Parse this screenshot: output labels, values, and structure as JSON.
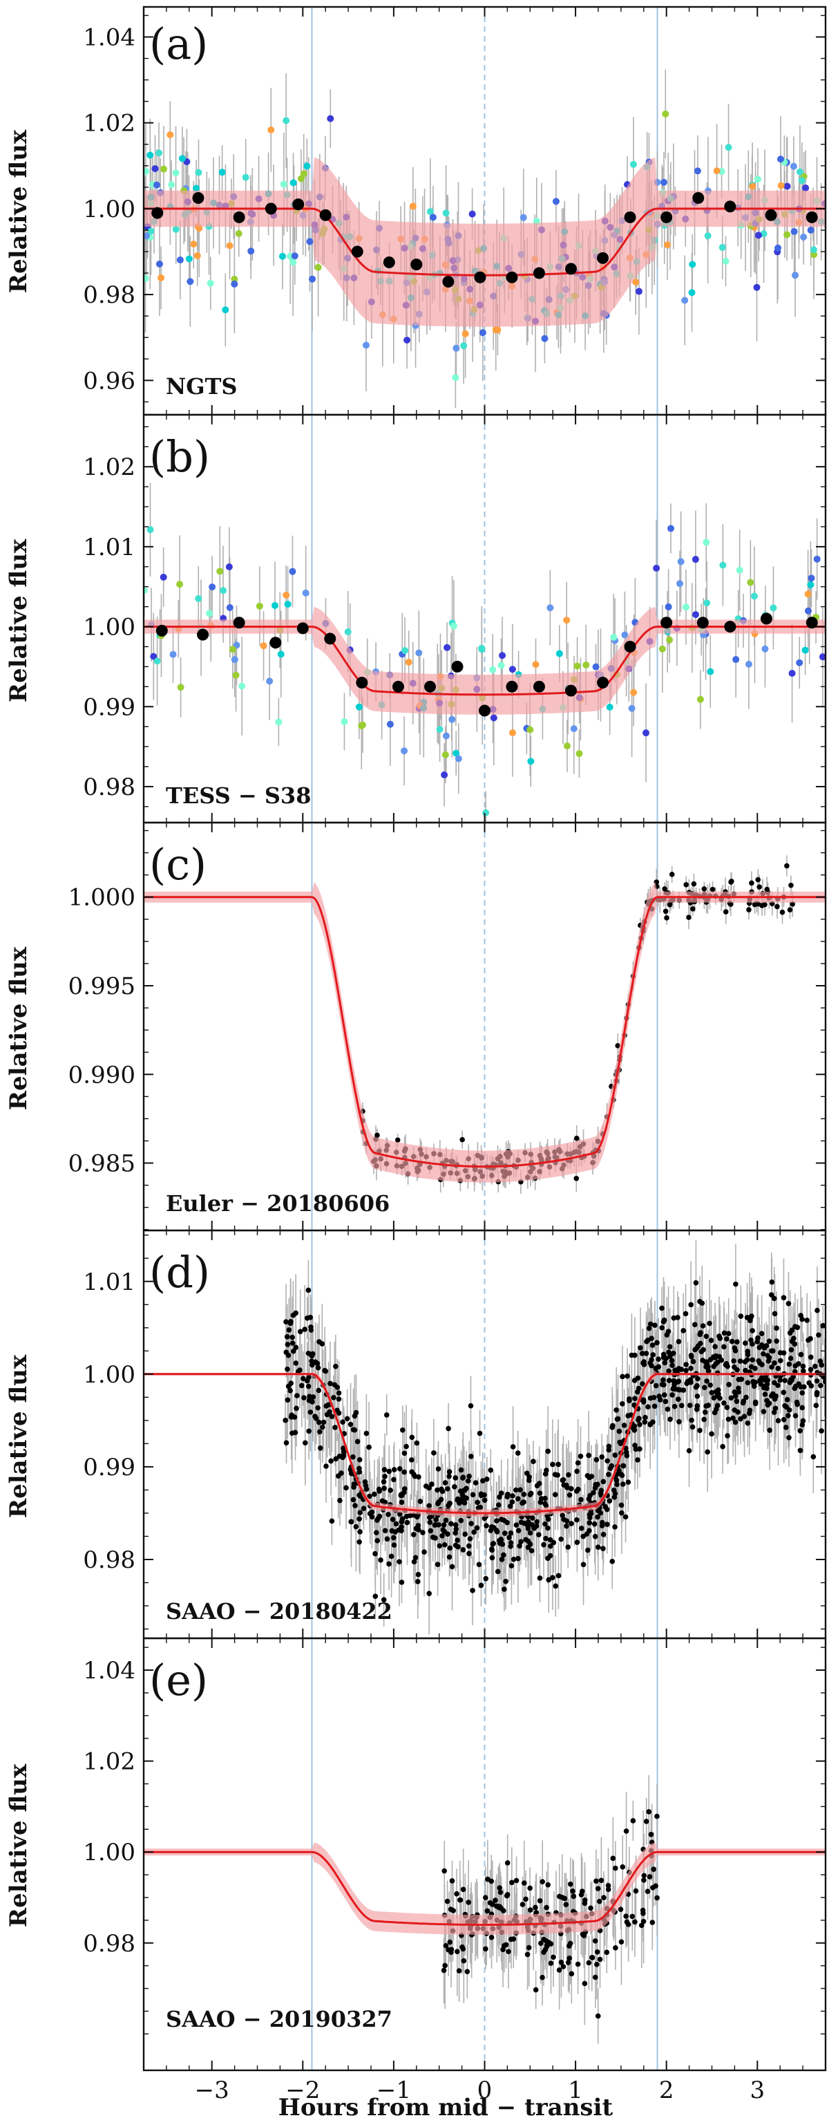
{
  "chart_data": {
    "type": "multi-panel light curve",
    "xlabel": "Hours from mid − transit",
    "xlim": [
      -3.75,
      3.75
    ],
    "x_ticks": [
      -3,
      -2,
      -1,
      0,
      1,
      2,
      3
    ],
    "x_tick_labels": [
      "−3",
      "−2",
      "−1",
      "0",
      "1",
      "2",
      "3"
    ],
    "shared_ylabel": "Relative flux",
    "ingress_egress_hours": [
      -1.9,
      1.9
    ],
    "mid_transit_hours": 0,
    "colors": {
      "model": "#e2191c",
      "model_band": "#f3a0a4",
      "binned": "#000000",
      "errorbar": "#b0b0b0",
      "vline": "#9fc3e0",
      "scatter_palette": [
        "#7fffd4",
        "#40e0d0",
        "#4169e1",
        "#3a3ad8",
        "#9acd32",
        "#ffa040",
        "#00ced1",
        "#6495ed"
      ]
    },
    "panels": [
      {
        "letter": "(a)",
        "name": "NGTS",
        "ylabel": "Relative flux",
        "ylim": [
          0.952,
          1.047
        ],
        "yticks": [
          0.96,
          0.98,
          1.0,
          1.02,
          1.04
        ],
        "ytick_labels": [
          "0.96",
          "0.98",
          "1.00",
          "1.02",
          "1.04"
        ],
        "depth": 0.0155,
        "model_half_width": 0.012,
        "points_style": "colored",
        "n_points": 320,
        "scatter": 0.008,
        "error": 0.009,
        "x_range": [
          -3.75,
          3.75
        ],
        "binned_x": [
          -3.6,
          -3.15,
          -2.7,
          -2.35,
          -2.05,
          -1.75,
          -1.4,
          -1.05,
          -0.75,
          -0.4,
          -0.05,
          0.3,
          0.6,
          0.95,
          1.3,
          1.6,
          2.0,
          2.35,
          2.7,
          3.15,
          3.6
        ],
        "binned_y": [
          0.999,
          1.0025,
          0.998,
          1.0,
          1.001,
          0.9985,
          0.99,
          0.9875,
          0.987,
          0.983,
          0.984,
          0.984,
          0.985,
          0.986,
          0.9885,
          0.998,
          0.998,
          1.0025,
          1.0005,
          0.9985,
          0.998
        ]
      },
      {
        "letter": "(b)",
        "name": "TESS − S38",
        "ylabel": "Relative flux",
        "ylim": [
          0.9755,
          1.0265
        ],
        "yticks": [
          0.98,
          0.99,
          1.0,
          1.01,
          1.02
        ],
        "ytick_labels": [
          "0.98",
          "0.99",
          "1.00",
          "1.01",
          "1.02"
        ],
        "depth": 0.0085,
        "model_half_width": 0.0025,
        "points_style": "colored",
        "n_points": 170,
        "scatter": 0.0045,
        "error": 0.0045,
        "x_range": [
          -3.75,
          3.75
        ],
        "binned_x": [
          -3.55,
          -3.1,
          -2.7,
          -2.3,
          -2.0,
          -1.7,
          -1.35,
          -0.95,
          -0.6,
          -0.3,
          0.0,
          0.3,
          0.6,
          0.95,
          1.3,
          1.6,
          2.0,
          2.4,
          2.7,
          3.1,
          3.6
        ],
        "binned_y": [
          0.9995,
          0.999,
          1.0005,
          0.998,
          0.9998,
          0.9985,
          0.993,
          0.9925,
          0.9925,
          0.995,
          0.9895,
          0.9925,
          0.9925,
          0.992,
          0.993,
          0.9975,
          1.0005,
          1.0005,
          1.0,
          1.001,
          1.0005
        ]
      },
      {
        "letter": "(c)",
        "name": "Euler − 20180606",
        "ylabel": "Relative flux",
        "ylim": [
          0.9812,
          1.0042
        ],
        "yticks": [
          0.985,
          0.99,
          0.995,
          1.0
        ],
        "ytick_labels": [
          "0.985",
          "0.990",
          "0.995",
          "1.000"
        ],
        "depth": 0.0152,
        "model_half_width": 0.0009,
        "points_style": "black",
        "n_points": 230,
        "scatter": 0.0005,
        "error": 0.0006,
        "x_range": [
          -1.35,
          3.45
        ]
      },
      {
        "letter": "(d)",
        "name": "SAAO − 20180422",
        "ylabel": "Relative flux",
        "ylim": [
          0.9715,
          1.0155
        ],
        "yticks": [
          0.98,
          0.99,
          1.0,
          1.01
        ],
        "ytick_labels": [
          "0.98",
          "0.99",
          "1.00",
          "1.01"
        ],
        "depth": 0.015,
        "model_half_width": 0.0004,
        "points_style": "black",
        "n_points": 1000,
        "scatter": 0.0035,
        "error": 0.0035,
        "x_range": [
          -2.2,
          3.75
        ]
      },
      {
        "letter": "(e)",
        "name": "SAAO − 20190327",
        "ylabel": "Relative flux",
        "ylim": [
          0.952,
          1.047
        ],
        "yticks": [
          0.98,
          1.0,
          1.02,
          1.04
        ],
        "ytick_labels": [
          "0.98",
          "1.00",
          "1.02",
          "1.04"
        ],
        "depth": 0.016,
        "model_half_width": 0.0022,
        "points_style": "black",
        "n_points": 230,
        "scatter": 0.005,
        "error": 0.007,
        "x_range": [
          -0.45,
          1.9
        ]
      }
    ]
  }
}
